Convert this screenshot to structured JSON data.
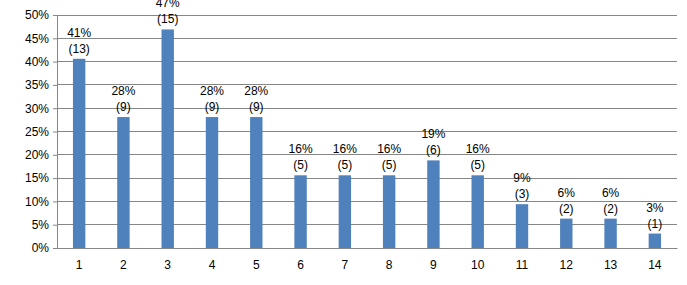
{
  "chart_data": {
    "type": "bar",
    "categories": [
      "1",
      "2",
      "3",
      "4",
      "5",
      "6",
      "7",
      "8",
      "9",
      "10",
      "11",
      "12",
      "13",
      "14"
    ],
    "values": [
      40.6,
      28.1,
      46.9,
      28.1,
      28.1,
      15.6,
      15.6,
      15.6,
      18.8,
      15.6,
      9.4,
      6.3,
      6.3,
      3.1
    ],
    "value_labels": [
      "41%\n(13)",
      "28%\n(9)",
      "47%\n(15)",
      "28%\n(9)",
      "28%\n(9)",
      "16%\n(5)",
      "16%\n(5)",
      "16%\n(5)",
      "19%\n(6)",
      "16%\n(5)",
      "9%\n(3)",
      "6%\n(2)",
      "6%\n(2)",
      "3%\n(1)"
    ],
    "data_labels": true,
    "color": "#4f81bd",
    "ylim": [
      0,
      50
    ],
    "yticks": [
      {
        "value": 0,
        "label": "0%"
      },
      {
        "value": 5,
        "label": "5%"
      },
      {
        "value": 10,
        "label": "10%"
      },
      {
        "value": 15,
        "label": "15%"
      },
      {
        "value": 20,
        "label": "20%"
      },
      {
        "value": 25,
        "label": "25%"
      },
      {
        "value": 30,
        "label": "30%"
      },
      {
        "value": 35,
        "label": "35%"
      },
      {
        "value": 40,
        "label": "40%"
      },
      {
        "value": 45,
        "label": "45%"
      },
      {
        "value": 50,
        "label": "50%"
      }
    ],
    "grid": true
  }
}
